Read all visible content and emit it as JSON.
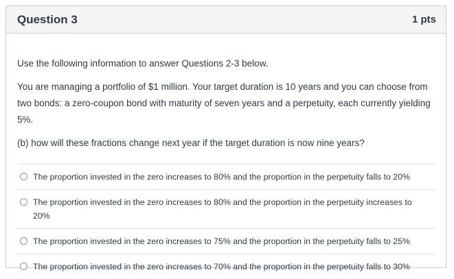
{
  "question": {
    "title": "Question 3",
    "points": "1 pts",
    "intro": "Use the following information to answer Questions 2-3 below.",
    "scenario": "You are managing a portfolio of $1 million. Your target duration is 10 years and you can choose from two bonds: a zero-coupon bond with maturity of seven years and a perpetuity, each currently yielding 5%.",
    "prompt": "(b) how will these fractions change next year if the target duration is now nine years?"
  },
  "answers": [
    {
      "label": "The proportion invested in the zero increases to 80% and the proportion in the perpetuity falls to 20%"
    },
    {
      "label": "The proportion invested in the zero increases to 80% and the proportion in the perpetuity increases to 20%"
    },
    {
      "label": "The proportion invested in the zero increases to 75% and the proportion in the perpetuity falls to 25%"
    },
    {
      "label": "The proportion invested in the zero increases to 70% and the proportion in the perpetuity falls to 30%"
    }
  ],
  "colors": {
    "header_bg": "#f5f5f5",
    "border": "#c7cdd1",
    "text": "#2d3b45"
  },
  "icons": {
    "radio": "radio-unselected-icon"
  }
}
